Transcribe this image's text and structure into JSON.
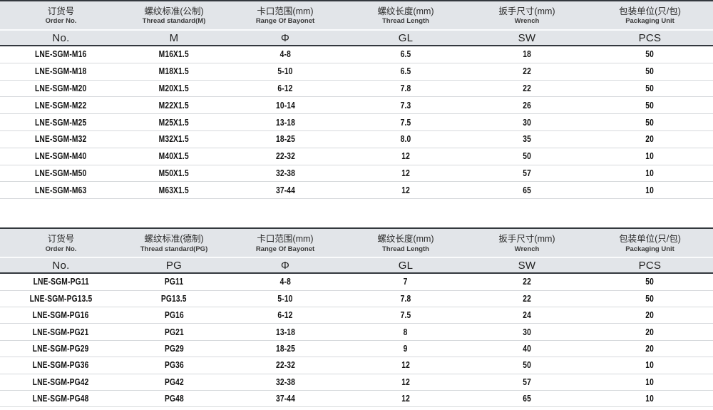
{
  "doc_type": "product-specification-tables",
  "colors": {
    "header_bg": "#e2e5e9",
    "dark_border": "#33383e",
    "row_line": "#d6d9dc",
    "data_text": "#101010"
  },
  "tables": [
    {
      "name": "metric-thread-specs",
      "columns": [
        {
          "zh": "订货号",
          "en": "Order No.",
          "symbol": "No."
        },
        {
          "zh": "螺纹标准(公制)",
          "en": "Thread standard(M)",
          "symbol": "M"
        },
        {
          "zh": "卡口范围(mm)",
          "en": "Range Of Bayonet",
          "symbol": "Φ"
        },
        {
          "zh": "螺纹长度(mm)",
          "en": "Thread Length",
          "symbol": "GL"
        },
        {
          "zh": "扳手尺寸(mm)",
          "en": "Wrench",
          "symbol": "SW"
        },
        {
          "zh": "包装单位(只/包)",
          "en": "Packaging Unit",
          "symbol": "PCS"
        }
      ],
      "rows": [
        [
          "LNE-SGM-M16",
          "M16X1.5",
          "4-8",
          "6.5",
          "18",
          "50"
        ],
        [
          "LNE-SGM-M18",
          "M18X1.5",
          "5-10",
          "6.5",
          "22",
          "50"
        ],
        [
          "LNE-SGM-M20",
          "M20X1.5",
          "6-12",
          "7.8",
          "22",
          "50"
        ],
        [
          "LNE-SGM-M22",
          "M22X1.5",
          "10-14",
          "7.3",
          "26",
          "50"
        ],
        [
          "LNE-SGM-M25",
          "M25X1.5",
          "13-18",
          "7.5",
          "30",
          "50"
        ],
        [
          "LNE-SGM-M32",
          "M32X1.5",
          "18-25",
          "8.0",
          "35",
          "20"
        ],
        [
          "LNE-SGM-M40",
          "M40X1.5",
          "22-32",
          "12",
          "50",
          "10"
        ],
        [
          "LNE-SGM-M50",
          "M50X1.5",
          "32-38",
          "12",
          "57",
          "10"
        ],
        [
          "LNE-SGM-M63",
          "M63X1.5",
          "37-44",
          "12",
          "65",
          "10"
        ]
      ]
    },
    {
      "name": "pg-thread-specs",
      "columns": [
        {
          "zh": "订货号",
          "en": "Order No.",
          "symbol": "No."
        },
        {
          "zh": "螺纹标准(德制)",
          "en": "Thread standard(PG)",
          "symbol": "PG"
        },
        {
          "zh": "卡口范围(mm)",
          "en": "Range Of Bayonet",
          "symbol": "Φ"
        },
        {
          "zh": "螺纹长度(mm)",
          "en": "Thread Length",
          "symbol": "GL"
        },
        {
          "zh": "扳手尺寸(mm)",
          "en": "Wrench",
          "symbol": "SW"
        },
        {
          "zh": "包装单位(只/包)",
          "en": "Packaging Unit",
          "symbol": "PCS"
        }
      ],
      "rows": [
        [
          "LNE-SGM-PG11",
          "PG11",
          "4-8",
          "7",
          "22",
          "50"
        ],
        [
          "LNE-SGM-PG13.5",
          "PG13.5",
          "5-10",
          "7.8",
          "22",
          "50"
        ],
        [
          "LNE-SGM-PG16",
          "PG16",
          "6-12",
          "7.5",
          "24",
          "20"
        ],
        [
          "LNE-SGM-PG21",
          "PG21",
          "13-18",
          "8",
          "30",
          "20"
        ],
        [
          "LNE-SGM-PG29",
          "PG29",
          "18-25",
          "9",
          "40",
          "20"
        ],
        [
          "LNE-SGM-PG36",
          "PG36",
          "22-32",
          "12",
          "50",
          "10"
        ],
        [
          "LNE-SGM-PG42",
          "PG42",
          "32-38",
          "12",
          "57",
          "10"
        ],
        [
          "LNE-SGM-PG48",
          "PG48",
          "37-44",
          "12",
          "65",
          "10"
        ]
      ]
    }
  ]
}
